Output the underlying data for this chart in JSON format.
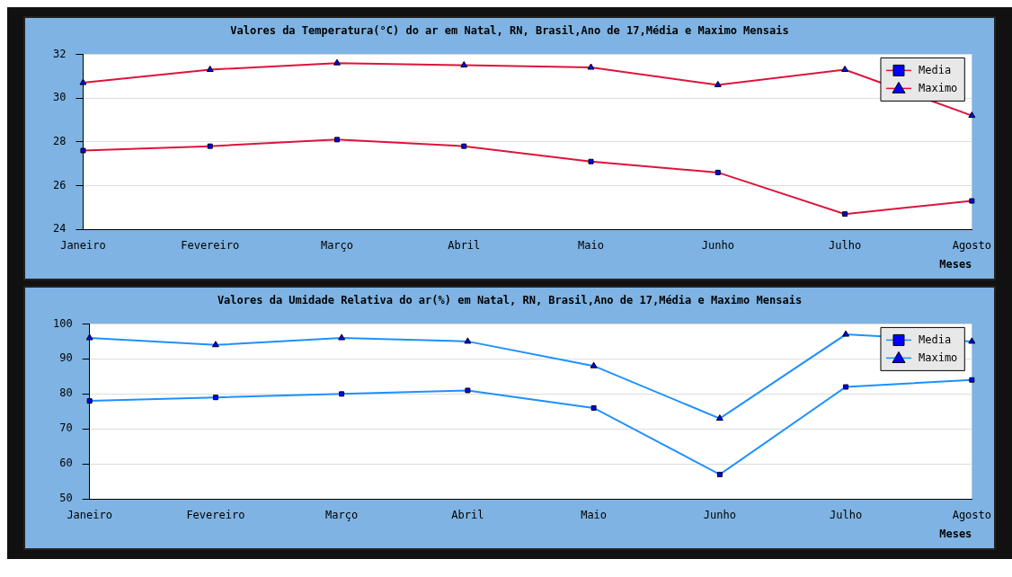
{
  "chart_data": [
    {
      "type": "line",
      "title": "Valores da Temperatura(°C) do ar em Natal, RN, Brasil,Ano de 17,Média e Maximo Mensais",
      "xlabel": "Meses",
      "categories": [
        "Janeiro",
        "Fevereiro",
        "Março",
        "Abril",
        "Maio",
        "Junho",
        "Julho",
        "Agosto"
      ],
      "series": [
        {
          "name": "Media",
          "color": "#dc143c",
          "marker": "square",
          "values": [
            27.6,
            27.8,
            28.1,
            27.8,
            27.1,
            26.6,
            24.7,
            25.3
          ]
        },
        {
          "name": "Maximo",
          "color": "#dc143c",
          "marker": "triangle",
          "values": [
            30.7,
            31.3,
            31.6,
            31.5,
            31.4,
            30.6,
            31.3,
            29.2
          ]
        }
      ],
      "ylim": [
        24,
        32
      ],
      "yticks": [
        24,
        26,
        28,
        30,
        32
      ],
      "grid": "y",
      "legend": "top right"
    },
    {
      "type": "line",
      "title": "Valores da Umidade Relativa do ar(%) em Natal, RN, Brasil,Ano de 17,Média e Maximo Mensais",
      "xlabel": "Meses",
      "categories": [
        "Janeiro",
        "Fevereiro",
        "Março",
        "Abril",
        "Maio",
        "Junho",
        "Julho",
        "Agosto"
      ],
      "series": [
        {
          "name": "Media",
          "color": "#1e90ff",
          "marker": "square",
          "values": [
            78,
            79,
            80,
            81,
            76,
            57,
            82,
            84
          ]
        },
        {
          "name": "Maximo",
          "color": "#1e90ff",
          "marker": "triangle",
          "values": [
            96,
            94,
            96,
            95,
            88,
            73,
            97,
            95
          ]
        }
      ],
      "ylim": [
        50,
        100
      ],
      "yticks": [
        50,
        60,
        70,
        80,
        90,
        100
      ],
      "grid": "y",
      "legend": "top right"
    }
  ]
}
